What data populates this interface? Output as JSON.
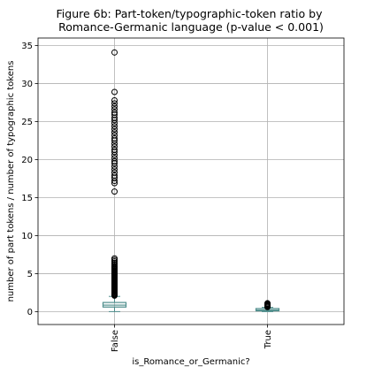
{
  "chart_data": {
    "type": "box",
    "title": "Figure 6b: Part-token/typographic-token ratio by",
    "subtitle": "Romance-Germanic language (p-value < 0.001)",
    "xlabel": "is_Romance_or_Germanic?",
    "ylabel": "number of part tokens / number of typographic tokens",
    "categories": [
      "False",
      "True"
    ],
    "ylim": [
      -1.7,
      36
    ],
    "yticks": [
      0,
      5,
      10,
      15,
      20,
      25,
      30,
      35
    ],
    "grid": true,
    "boxes": [
      {
        "category": "False",
        "whisker_low": 0.0,
        "q1": 0.6,
        "median": 0.85,
        "q3": 1.2,
        "whisker_high": 2.0,
        "outliers": [
          2.1,
          2.2,
          2.3,
          2.4,
          2.5,
          2.6,
          2.7,
          2.8,
          2.9,
          3.0,
          3.1,
          3.2,
          3.3,
          3.4,
          3.5,
          3.6,
          3.7,
          3.8,
          3.9,
          4.0,
          4.1,
          4.2,
          4.3,
          4.4,
          4.5,
          4.6,
          4.7,
          4.8,
          4.9,
          5.0,
          5.1,
          5.2,
          5.3,
          5.4,
          5.5,
          5.6,
          5.7,
          5.8,
          5.9,
          6.0,
          6.2,
          6.4,
          6.6,
          6.8,
          7.0,
          15.8,
          16.9,
          17.2,
          17.6,
          17.9,
          18.3,
          18.7,
          19.1,
          19.5,
          19.8,
          20.2,
          20.6,
          21.0,
          21.3,
          21.7,
          22.1,
          22.5,
          22.8,
          23.2,
          23.6,
          24.0,
          24.4,
          24.8,
          25.2,
          25.5,
          25.9,
          26.2,
          26.6,
          27.0,
          27.4,
          27.8,
          28.9,
          34.1
        ]
      },
      {
        "category": "True",
        "whisker_low": 0.0,
        "q1": 0.1,
        "median": 0.2,
        "q3": 0.4,
        "whisker_high": 0.55,
        "outliers": [
          0.6,
          0.65,
          0.7,
          0.75,
          0.8,
          0.85,
          0.9,
          0.95,
          1.0,
          1.05,
          1.1
        ]
      }
    ],
    "colors": {
      "box": "#4c8c8a",
      "median": "#4c8c8a",
      "whisker": "#4c8c8a",
      "outlier": "#000000",
      "grid": "#b0b0b0"
    }
  }
}
